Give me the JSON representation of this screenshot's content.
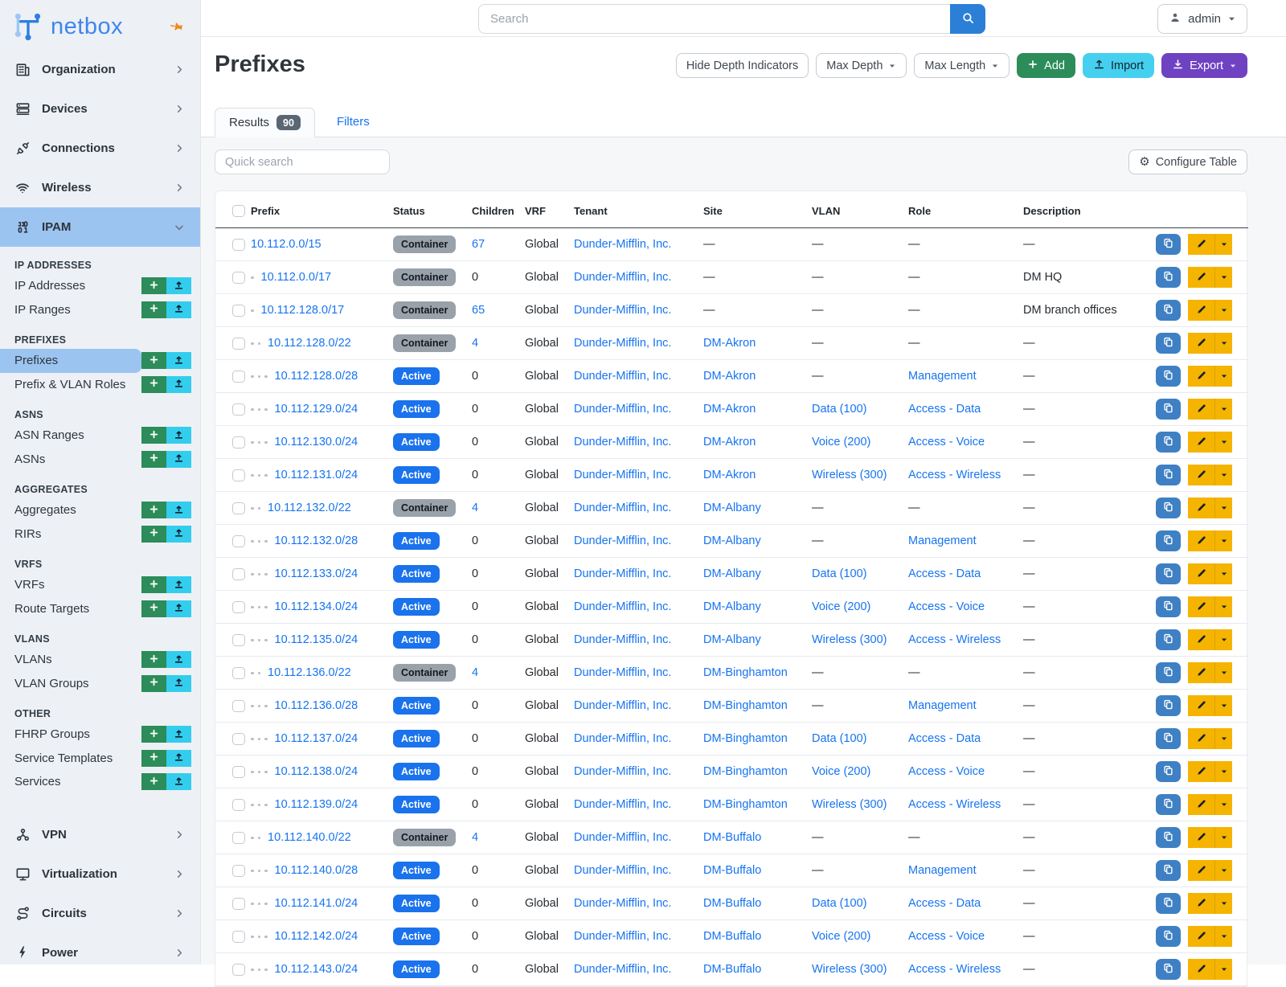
{
  "topbar": {
    "search_placeholder": "Search",
    "user": "admin"
  },
  "sidebar": {
    "brand": "netbox",
    "top_items": [
      {
        "label": "Organization",
        "icon": "building-icon"
      },
      {
        "label": "Devices",
        "icon": "server-icon"
      },
      {
        "label": "Connections",
        "icon": "plug-icon"
      },
      {
        "label": "Wireless",
        "icon": "wifi-icon"
      }
    ],
    "ipam_label": "IPAM",
    "sections": [
      {
        "header": "IP ADDRESSES",
        "items": [
          {
            "label": "IP Addresses"
          },
          {
            "label": "IP Ranges"
          }
        ]
      },
      {
        "header": "PREFIXES",
        "items": [
          {
            "label": "Prefixes",
            "active": true
          },
          {
            "label": "Prefix & VLAN Roles"
          }
        ]
      },
      {
        "header": "ASNS",
        "items": [
          {
            "label": "ASN Ranges"
          },
          {
            "label": "ASNs"
          }
        ]
      },
      {
        "header": "AGGREGATES",
        "items": [
          {
            "label": "Aggregates"
          },
          {
            "label": "RIRs"
          }
        ]
      },
      {
        "header": "VRFS",
        "items": [
          {
            "label": "VRFs"
          },
          {
            "label": "Route Targets"
          }
        ]
      },
      {
        "header": "VLANS",
        "items": [
          {
            "label": "VLANs"
          },
          {
            "label": "VLAN Groups"
          }
        ]
      },
      {
        "header": "OTHER",
        "items": [
          {
            "label": "FHRP Groups"
          },
          {
            "label": "Service Templates"
          },
          {
            "label": "Services"
          }
        ]
      }
    ],
    "bottom_items": [
      {
        "label": "VPN",
        "icon": "network-icon"
      },
      {
        "label": "Virtualization",
        "icon": "monitor-icon"
      },
      {
        "label": "Circuits",
        "icon": "route-icon"
      },
      {
        "label": "Power",
        "icon": "bolt-icon"
      }
    ]
  },
  "page": {
    "title": "Prefixes",
    "controls": {
      "hide_depth": "Hide Depth Indicators",
      "max_depth": "Max Depth",
      "max_length": "Max Length",
      "add": "Add",
      "import": "Import",
      "export": "Export"
    },
    "tabs": {
      "results": "Results",
      "results_count": "90",
      "filters": "Filters"
    },
    "quick_search_placeholder": "Quick search",
    "configure_table": "Configure Table"
  },
  "table": {
    "columns": [
      "Prefix",
      "Status",
      "Children",
      "VRF",
      "Tenant",
      "Site",
      "VLAN",
      "Role",
      "Description"
    ],
    "empty_placeholder": "—",
    "rows": [
      {
        "depth": 0,
        "prefix": "10.112.0.0/15",
        "status": "Container",
        "children": "67",
        "vrf": "Global",
        "tenant": "Dunder-Mifflin, Inc.",
        "site": "",
        "vlan": "",
        "role": "",
        "description": ""
      },
      {
        "depth": 1,
        "prefix": "10.112.0.0/17",
        "status": "Container",
        "children": "0",
        "vrf": "Global",
        "tenant": "Dunder-Mifflin, Inc.",
        "site": "",
        "vlan": "",
        "role": "",
        "description": "DM HQ"
      },
      {
        "depth": 1,
        "prefix": "10.112.128.0/17",
        "status": "Container",
        "children": "65",
        "vrf": "Global",
        "tenant": "Dunder-Mifflin, Inc.",
        "site": "",
        "vlan": "",
        "role": "",
        "description": "DM branch offices"
      },
      {
        "depth": 2,
        "prefix": "10.112.128.0/22",
        "status": "Container",
        "children": "4",
        "vrf": "Global",
        "tenant": "Dunder-Mifflin, Inc.",
        "site": "DM-Akron",
        "vlan": "",
        "role": "",
        "description": ""
      },
      {
        "depth": 3,
        "prefix": "10.112.128.0/28",
        "status": "Active",
        "children": "0",
        "vrf": "Global",
        "tenant": "Dunder-Mifflin, Inc.",
        "site": "DM-Akron",
        "vlan": "",
        "role": "Management",
        "description": ""
      },
      {
        "depth": 3,
        "prefix": "10.112.129.0/24",
        "status": "Active",
        "children": "0",
        "vrf": "Global",
        "tenant": "Dunder-Mifflin, Inc.",
        "site": "DM-Akron",
        "vlan": "Data (100)",
        "role": "Access - Data",
        "description": ""
      },
      {
        "depth": 3,
        "prefix": "10.112.130.0/24",
        "status": "Active",
        "children": "0",
        "vrf": "Global",
        "tenant": "Dunder-Mifflin, Inc.",
        "site": "DM-Akron",
        "vlan": "Voice (200)",
        "role": "Access - Voice",
        "description": ""
      },
      {
        "depth": 3,
        "prefix": "10.112.131.0/24",
        "status": "Active",
        "children": "0",
        "vrf": "Global",
        "tenant": "Dunder-Mifflin, Inc.",
        "site": "DM-Akron",
        "vlan": "Wireless (300)",
        "role": "Access - Wireless",
        "description": ""
      },
      {
        "depth": 2,
        "prefix": "10.112.132.0/22",
        "status": "Container",
        "children": "4",
        "vrf": "Global",
        "tenant": "Dunder-Mifflin, Inc.",
        "site": "DM-Albany",
        "vlan": "",
        "role": "",
        "description": ""
      },
      {
        "depth": 3,
        "prefix": "10.112.132.0/28",
        "status": "Active",
        "children": "0",
        "vrf": "Global",
        "tenant": "Dunder-Mifflin, Inc.",
        "site": "DM-Albany",
        "vlan": "",
        "role": "Management",
        "description": ""
      },
      {
        "depth": 3,
        "prefix": "10.112.133.0/24",
        "status": "Active",
        "children": "0",
        "vrf": "Global",
        "tenant": "Dunder-Mifflin, Inc.",
        "site": "DM-Albany",
        "vlan": "Data (100)",
        "role": "Access - Data",
        "description": ""
      },
      {
        "depth": 3,
        "prefix": "10.112.134.0/24",
        "status": "Active",
        "children": "0",
        "vrf": "Global",
        "tenant": "Dunder-Mifflin, Inc.",
        "site": "DM-Albany",
        "vlan": "Voice (200)",
        "role": "Access - Voice",
        "description": ""
      },
      {
        "depth": 3,
        "prefix": "10.112.135.0/24",
        "status": "Active",
        "children": "0",
        "vrf": "Global",
        "tenant": "Dunder-Mifflin, Inc.",
        "site": "DM-Albany",
        "vlan": "Wireless (300)",
        "role": "Access - Wireless",
        "description": ""
      },
      {
        "depth": 2,
        "prefix": "10.112.136.0/22",
        "status": "Container",
        "children": "4",
        "vrf": "Global",
        "tenant": "Dunder-Mifflin, Inc.",
        "site": "DM-Binghamton",
        "vlan": "",
        "role": "",
        "description": ""
      },
      {
        "depth": 3,
        "prefix": "10.112.136.0/28",
        "status": "Active",
        "children": "0",
        "vrf": "Global",
        "tenant": "Dunder-Mifflin, Inc.",
        "site": "DM-Binghamton",
        "vlan": "",
        "role": "Management",
        "description": ""
      },
      {
        "depth": 3,
        "prefix": "10.112.137.0/24",
        "status": "Active",
        "children": "0",
        "vrf": "Global",
        "tenant": "Dunder-Mifflin, Inc.",
        "site": "DM-Binghamton",
        "vlan": "Data (100)",
        "role": "Access - Data",
        "description": ""
      },
      {
        "depth": 3,
        "prefix": "10.112.138.0/24",
        "status": "Active",
        "children": "0",
        "vrf": "Global",
        "tenant": "Dunder-Mifflin, Inc.",
        "site": "DM-Binghamton",
        "vlan": "Voice (200)",
        "role": "Access - Voice",
        "description": ""
      },
      {
        "depth": 3,
        "prefix": "10.112.139.0/24",
        "status": "Active",
        "children": "0",
        "vrf": "Global",
        "tenant": "Dunder-Mifflin, Inc.",
        "site": "DM-Binghamton",
        "vlan": "Wireless (300)",
        "role": "Access - Wireless",
        "description": ""
      },
      {
        "depth": 2,
        "prefix": "10.112.140.0/22",
        "status": "Container",
        "children": "4",
        "vrf": "Global",
        "tenant": "Dunder-Mifflin, Inc.",
        "site": "DM-Buffalo",
        "vlan": "",
        "role": "",
        "description": ""
      },
      {
        "depth": 3,
        "prefix": "10.112.140.0/28",
        "status": "Active",
        "children": "0",
        "vrf": "Global",
        "tenant": "Dunder-Mifflin, Inc.",
        "site": "DM-Buffalo",
        "vlan": "",
        "role": "Management",
        "description": ""
      },
      {
        "depth": 3,
        "prefix": "10.112.141.0/24",
        "status": "Active",
        "children": "0",
        "vrf": "Global",
        "tenant": "Dunder-Mifflin, Inc.",
        "site": "DM-Buffalo",
        "vlan": "Data (100)",
        "role": "Access - Data",
        "description": ""
      },
      {
        "depth": 3,
        "prefix": "10.112.142.0/24",
        "status": "Active",
        "children": "0",
        "vrf": "Global",
        "tenant": "Dunder-Mifflin, Inc.",
        "site": "DM-Buffalo",
        "vlan": "Voice (200)",
        "role": "Access - Voice",
        "description": ""
      },
      {
        "depth": 3,
        "prefix": "10.112.143.0/24",
        "status": "Active",
        "children": "0",
        "vrf": "Global",
        "tenant": "Dunder-Mifflin, Inc.",
        "site": "DM-Buffalo",
        "vlan": "Wireless (300)",
        "role": "Access - Wireless",
        "description": ""
      }
    ]
  },
  "colors": {
    "link_blue": "#1674f0",
    "active_badge": "#1a72ec",
    "container_badge": "#99a2ab",
    "sidebar_highlight": "#9cc4f0",
    "add_green": "#2c8c5a",
    "import_cyan": "#45d0f0",
    "export_purple": "#6e42c1",
    "action_yellow": "#f5b400",
    "copy_blue": "#3e80c3",
    "brand_blue": "#3f85ee",
    "pin_orange": "#ef8b1d"
  }
}
